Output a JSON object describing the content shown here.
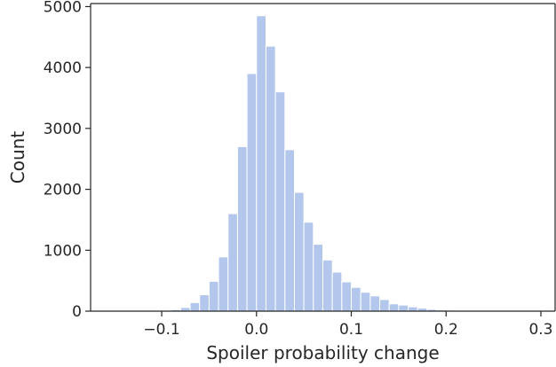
{
  "chart_data": {
    "type": "bar",
    "subtype": "histogram",
    "title": "",
    "xlabel": "Spoiler probability change",
    "ylabel": "Count",
    "xlim": [
      -0.175,
      0.315
    ],
    "ylim": [
      0,
      5050
    ],
    "bar_color": "#b3c6ec",
    "bin_width": 0.01,
    "bins": [
      {
        "x": -0.185,
        "value": 0
      },
      {
        "x": -0.175,
        "value": 0
      },
      {
        "x": -0.165,
        "value": 0
      },
      {
        "x": -0.155,
        "value": 0
      },
      {
        "x": -0.145,
        "value": 0
      },
      {
        "x": -0.135,
        "value": 0
      },
      {
        "x": -0.125,
        "value": 0
      },
      {
        "x": -0.115,
        "value": 2
      },
      {
        "x": -0.105,
        "value": 5
      },
      {
        "x": -0.095,
        "value": 10
      },
      {
        "x": -0.085,
        "value": 25
      },
      {
        "x": -0.075,
        "value": 60
      },
      {
        "x": -0.065,
        "value": 140
      },
      {
        "x": -0.055,
        "value": 270
      },
      {
        "x": -0.045,
        "value": 490
      },
      {
        "x": -0.035,
        "value": 890
      },
      {
        "x": -0.025,
        "value": 1600
      },
      {
        "x": -0.015,
        "value": 2700
      },
      {
        "x": -0.005,
        "value": 3900
      },
      {
        "x": 0.005,
        "value": 4850
      },
      {
        "x": 0.015,
        "value": 4350
      },
      {
        "x": 0.025,
        "value": 3600
      },
      {
        "x": 0.035,
        "value": 2650
      },
      {
        "x": 0.045,
        "value": 1950
      },
      {
        "x": 0.055,
        "value": 1460
      },
      {
        "x": 0.065,
        "value": 1100
      },
      {
        "x": 0.075,
        "value": 840
      },
      {
        "x": 0.085,
        "value": 640
      },
      {
        "x": 0.095,
        "value": 480
      },
      {
        "x": 0.105,
        "value": 390
      },
      {
        "x": 0.115,
        "value": 310
      },
      {
        "x": 0.125,
        "value": 250
      },
      {
        "x": 0.135,
        "value": 190
      },
      {
        "x": 0.145,
        "value": 120
      },
      {
        "x": 0.155,
        "value": 100
      },
      {
        "x": 0.165,
        "value": 70
      },
      {
        "x": 0.175,
        "value": 50
      },
      {
        "x": 0.185,
        "value": 30
      },
      {
        "x": 0.195,
        "value": 20
      },
      {
        "x": 0.205,
        "value": 15
      },
      {
        "x": 0.215,
        "value": 10
      },
      {
        "x": 0.225,
        "value": 8
      },
      {
        "x": 0.235,
        "value": 5
      },
      {
        "x": 0.245,
        "value": 4
      },
      {
        "x": 0.255,
        "value": 3
      },
      {
        "x": 0.265,
        "value": 2
      },
      {
        "x": 0.275,
        "value": 2
      },
      {
        "x": 0.285,
        "value": 1
      },
      {
        "x": 0.295,
        "value": 1
      },
      {
        "x": 0.305,
        "value": 1
      }
    ],
    "x_ticks": [
      {
        "value": -0.1,
        "label": "−0.1"
      },
      {
        "value": 0.0,
        "label": "0.0"
      },
      {
        "value": 0.1,
        "label": "0.1"
      },
      {
        "value": 0.2,
        "label": "0.2"
      },
      {
        "value": 0.3,
        "label": "0.3"
      }
    ],
    "y_ticks": [
      {
        "value": 0,
        "label": "0"
      },
      {
        "value": 1000,
        "label": "1000"
      },
      {
        "value": 2000,
        "label": "2000"
      },
      {
        "value": 3000,
        "label": "3000"
      },
      {
        "value": 4000,
        "label": "4000"
      },
      {
        "value": 5000,
        "label": "5000"
      }
    ],
    "grid": false,
    "legend": "none"
  }
}
